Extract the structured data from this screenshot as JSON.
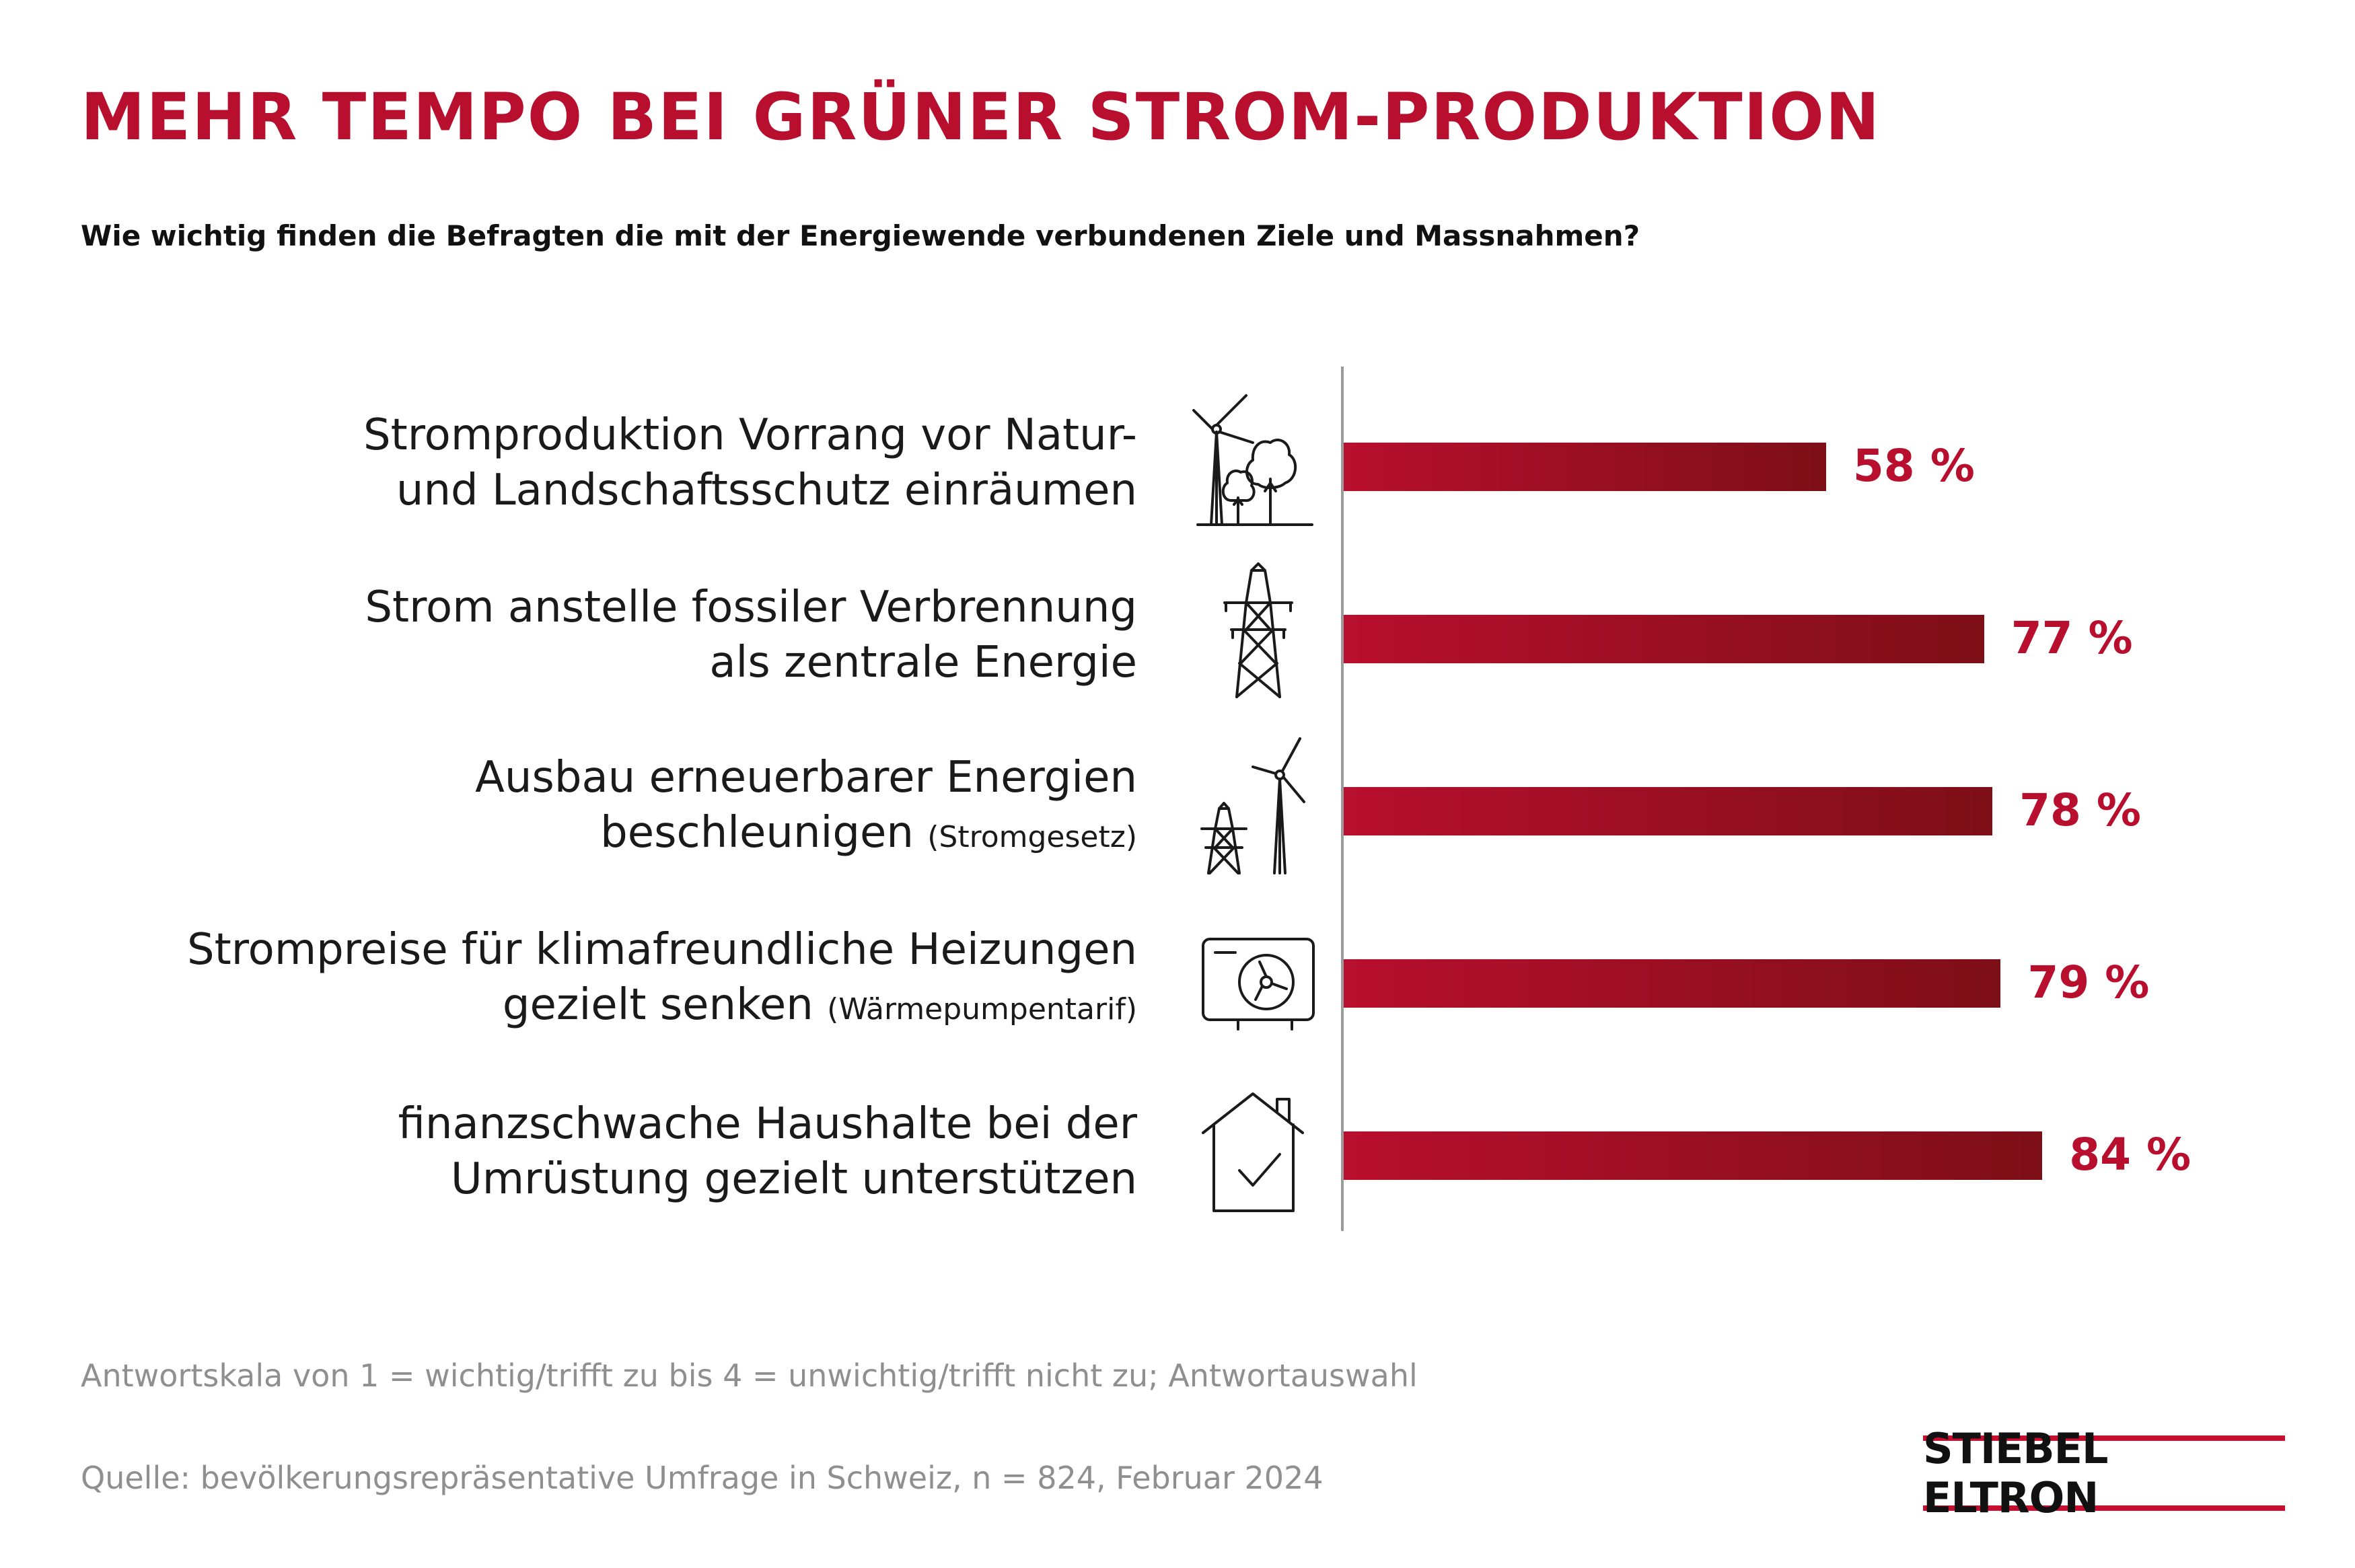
{
  "title": "MEHR TEMPO BEI GRÜNER STROM-PRODUKTION",
  "subtitle": "Wie wichtig finden die Befragten die mit der Energiewende verbundenen Ziele und Massnahmen?",
  "chart_data": {
    "type": "bar",
    "orientation": "horizontal",
    "unit": "%",
    "xlim": [
      0,
      100
    ],
    "bar_color": "#b80f2e",
    "bar_color_end": "#7d0f17",
    "categories": [
      {
        "lines": [
          "Stromproduktion Vorrang vor Natur-",
          "und Landschaftsschutz einräumen"
        ],
        "note": "",
        "icon": "wind-turbine-trees-icon",
        "value": 58,
        "value_label": "58 %"
      },
      {
        "lines": [
          "Strom anstelle fossiler Verbrennung",
          "als zentrale Energie"
        ],
        "note": "",
        "icon": "power-pylon-icon",
        "value": 77,
        "value_label": "77 %"
      },
      {
        "lines": [
          "Ausbau erneuerbarer Energien",
          "beschleunigen"
        ],
        "note": "(Stromgesetz)",
        "icon": "pylon-wind-turbine-icon",
        "value": 78,
        "value_label": "78 %"
      },
      {
        "lines": [
          "Strompreise für klimafreundliche Heizungen",
          "gezielt senken"
        ],
        "note": "(Wärmepumpentarif)",
        "icon": "heat-pump-icon",
        "value": 79,
        "value_label": "79 %"
      },
      {
        "lines": [
          "finanzschwache Haushalte bei der",
          "Umrüstung gezielt unterstützen"
        ],
        "note": "",
        "icon": "house-check-icon",
        "value": 84,
        "value_label": "84 %"
      }
    ]
  },
  "footnotes": {
    "scale": "Antwortskala von 1 = wichtig/trifft zu bis 4 = unwichtig/trifft nicht zu; Antwortauswahl",
    "source": "Quelle: bevölkerungsrepräsentative Umfrage in Schweiz, n = 824, Februar 2024"
  },
  "logo": {
    "text": "STIEBEL ELTRON",
    "accent_color": "#c40f2f"
  }
}
